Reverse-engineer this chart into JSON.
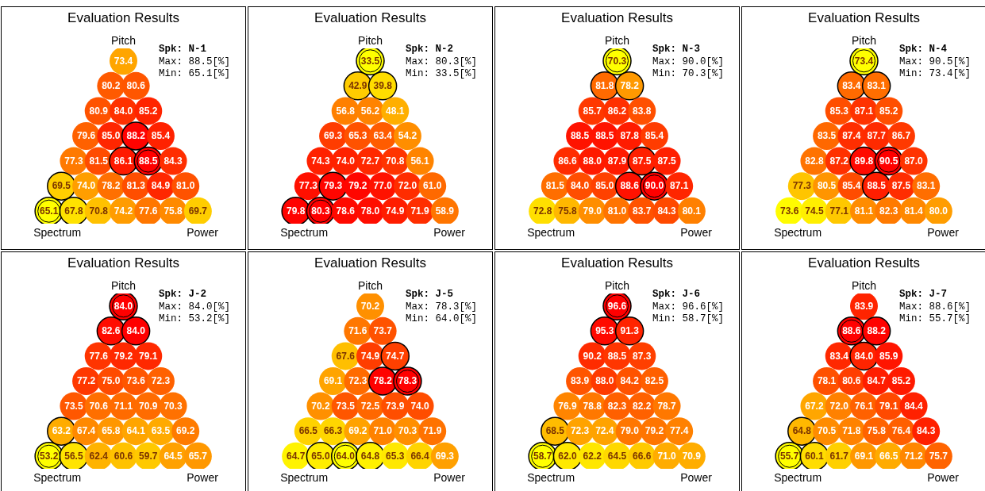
{
  "chart_data": [
    {
      "type": "other",
      "title": "Evaluation Results",
      "subtitle": "Spk: N-1",
      "annotations": [
        "Pitch",
        "Spectrum",
        "Power",
        "Max: 88.5[%]",
        "Min: 65.1[%]"
      ],
      "values": [
        73.4,
        80.2,
        80.6,
        80.9,
        84.0,
        85.2,
        79.6,
        85.0,
        88.2,
        85.4,
        77.3,
        81.5,
        86.1,
        88.5,
        84.3,
        69.5,
        74.0,
        78.2,
        81.3,
        84.9,
        81.0,
        65.1,
        67.8,
        70.8,
        74.2,
        77.6,
        75.8,
        69.7
      ],
      "value_labels": [
        "73.4",
        "80.2",
        "80.6",
        "80.9",
        "84.0",
        "85.2",
        "79.6",
        "85.0",
        "88.2",
        "85.4",
        "77.3",
        "81.5",
        "86.1",
        "88.5",
        "84.3",
        "69.5",
        "74.0",
        "78.2",
        "81.3",
        "84.9",
        "81.0",
        "65.1",
        "67.8",
        "70.8",
        "74.2",
        "77.6",
        "75.8",
        "69.7"
      ]
    },
    {
      "type": "other",
      "title": "Evaluation Results",
      "subtitle": "Spk: N-2",
      "annotations": [
        "Pitch",
        "Spectrum",
        "Power",
        "Max: 80.3[%]",
        "Min: 33.5[%]"
      ],
      "values": [
        33.5,
        42.9,
        39.8,
        56.8,
        56.2,
        48.1,
        69.3,
        65.3,
        63.4,
        54.2,
        74.3,
        74.0,
        72.7,
        70.8,
        56.1,
        77.3,
        79.3,
        79.2,
        77.0,
        72.0,
        61.0,
        79.8,
        80.3,
        78.6,
        78.0,
        74.9,
        71.9,
        58.9
      ],
      "value_labels": [
        "33.5",
        "42.9",
        "39.8",
        "56.8",
        "56.2",
        "48.1",
        "69.3",
        "65.3",
        "63.4",
        "54.2",
        "74.3",
        "74.0",
        "72.7",
        "70.8",
        "56.1",
        "77.3",
        "79.3",
        "79.2",
        "77.0",
        "72.0",
        "61.0",
        "79.8",
        "80.3",
        "78.6",
        "78.0",
        "74.9",
        "71.9",
        "58.9"
      ]
    },
    {
      "type": "other",
      "title": "Evaluation Results",
      "subtitle": "Spk: N-3",
      "annotations": [
        "Pitch",
        "Spectrum",
        "Power",
        "Max: 90.0[%]",
        "Min: 70.3[%]"
      ],
      "values": [
        70.3,
        81.8,
        78.2,
        85.7,
        86.2,
        83.8,
        88.5,
        88.5,
        87.8,
        85.4,
        86.6,
        88.0,
        87.9,
        87.5,
        87.5,
        81.5,
        84.0,
        85.0,
        88.6,
        90.0,
        87.1,
        72.8,
        75.8,
        79.0,
        81.0,
        83.7,
        84.3,
        80.1
      ],
      "value_labels": [
        "70.3",
        "81.8",
        "78.2",
        "85.7",
        "86.2",
        "83.8",
        "88.5",
        "88.5",
        "87.8",
        "85.4",
        "86.6",
        "88.0",
        "87.9",
        "87.5",
        "87.5",
        "81.5",
        "84.0",
        "85.0",
        "88.6",
        "90.0",
        "87.1",
        "72.8",
        "75.8",
        "79.0",
        "81.0",
        "83.7",
        "84.3",
        "80.1"
      ]
    },
    {
      "type": "other",
      "title": "Evaluation Results",
      "subtitle": "Spk: N-4",
      "annotations": [
        "Pitch",
        "Spectrum",
        "Power",
        "Max: 90.5[%]",
        "Min: 73.4[%]"
      ],
      "values": [
        73.4,
        83.4,
        83.1,
        85.3,
        87.1,
        85.2,
        83.5,
        87.4,
        87.7,
        86.7,
        82.8,
        87.2,
        89.8,
        90.5,
        87.0,
        77.3,
        80.5,
        85.4,
        88.5,
        87.5,
        83.1,
        73.6,
        74.5,
        77.1,
        81.1,
        82.3,
        81.4,
        80.0
      ],
      "value_labels": [
        "73.4",
        "83.4",
        "83.1",
        "85.3",
        "87.1",
        "85.2",
        "83.5",
        "87.4",
        "87.7",
        "86.7",
        "82.8",
        "87.2",
        "89.8",
        "90.5",
        "87.0",
        "77.3",
        "80.5",
        "85.4",
        "88.5",
        "87.5",
        "83.1",
        "73.6",
        "74.5",
        "77.1",
        "81.1",
        "82.3",
        "81.4",
        "80.0"
      ]
    },
    {
      "type": "other",
      "title": "Evaluation Results",
      "subtitle": "Spk: J-2",
      "annotations": [
        "Pitch",
        "Spectrum",
        "Power",
        "Max: 84.0[%]",
        "Min: 53.2[%]"
      ],
      "values": [
        84.0,
        82.6,
        84.0,
        77.6,
        79.2,
        79.1,
        77.2,
        75.0,
        73.6,
        72.3,
        73.5,
        70.6,
        71.1,
        70.9,
        70.3,
        63.2,
        67.4,
        65.8,
        64.1,
        63.5,
        69.2,
        53.2,
        56.5,
        62.4,
        60.6,
        59.7,
        64.5,
        65.7
      ],
      "value_labels": [
        "84.0",
        "82.6",
        "84.0",
        "77.6",
        "79.2",
        "79.1",
        "77.2",
        "75.0",
        "73.6",
        "72.3",
        "73.5",
        "70.6",
        "71.1",
        "70.9",
        "70.3",
        "63.2",
        "67.4",
        "65.8",
        "64.1",
        "63.5",
        "69.2",
        "53.2",
        "56.5",
        "62.4",
        "60.6",
        "59.7",
        "64.5",
        "65.7"
      ]
    },
    {
      "type": "other",
      "title": "Evaluation Results",
      "subtitle": "Spk: J-5",
      "annotations": [
        "Pitch",
        "Spectrum",
        "Power",
        "Max: 78.3[%]",
        "Min: 64.0[%]"
      ],
      "values": [
        70.2,
        71.6,
        73.7,
        67.6,
        74.9,
        74.7,
        69.1,
        72.3,
        78.2,
        78.3,
        70.2,
        73.5,
        72.5,
        73.9,
        74.0,
        66.5,
        66.3,
        69.2,
        71.0,
        70.3,
        71.9,
        64.7,
        65.0,
        64.0,
        64.8,
        65.3,
        66.4,
        69.3
      ],
      "value_labels": [
        "70.2",
        "71.6",
        "73.7",
        "67.6",
        "74.9",
        "74.7",
        "69.1",
        "72.3",
        "78.2",
        "78.3",
        "70.2",
        "73.5",
        "72.5",
        "73.9",
        "74.0",
        "66.5",
        "66.3",
        "69.2",
        "71.0",
        "70.3",
        "71.9",
        "64.7",
        "65.0",
        "64.0",
        "64.8",
        "65.3",
        "66.4",
        "69.3"
      ]
    },
    {
      "type": "other",
      "title": "Evaluation Results",
      "subtitle": "Spk: J-6",
      "annotations": [
        "Pitch",
        "Spectrum",
        "Power",
        "Max: 96.6[%]",
        "Min: 58.7[%]"
      ],
      "values": [
        96.6,
        95.3,
        91.3,
        90.2,
        88.5,
        87.3,
        83.9,
        88.0,
        84.2,
        82.5,
        76.9,
        78.8,
        82.3,
        82.2,
        78.7,
        68.5,
        72.3,
        72.4,
        79.0,
        79.2,
        77.4,
        58.7,
        62.0,
        62.2,
        64.5,
        66.6,
        71.0,
        70.9
      ],
      "value_labels": [
        "96.6",
        "95.3",
        "91.3",
        "90.2",
        "88.5",
        "87.3",
        "83.9",
        "88.0",
        "84.2",
        "82.5",
        "76.9",
        "78.8",
        "82.3",
        "82.2",
        "78.7",
        "68.5",
        "72.3",
        "72.4",
        "79.0",
        "79.2",
        "77.4",
        "58.7",
        "62.0",
        "62.2",
        "64.5",
        "66.6",
        "71.0",
        "70.9"
      ]
    },
    {
      "type": "other",
      "title": "Evaluation Results",
      "subtitle": "Spk: J-7",
      "annotations": [
        "Pitch",
        "Spectrum",
        "Power",
        "Max: 88.6[%]",
        "Min: 55.7[%]"
      ],
      "values": [
        83.9,
        88.6,
        88.2,
        83.4,
        84.0,
        85.9,
        78.1,
        80.6,
        84.7,
        85.2,
        67.2,
        72.0,
        76.1,
        79.1,
        84.4,
        64.8,
        70.5,
        71.8,
        75.8,
        76.4,
        84.3,
        55.7,
        60.1,
        61.7,
        69.1,
        66.5,
        71.2,
        75.7
      ],
      "value_labels": [
        "83.9",
        "88.6",
        "88.2",
        "83.4",
        "84.0",
        "85.9",
        "78.1",
        "80.6",
        "84.7",
        "85.2",
        "67.2",
        "72.0",
        "76.1",
        "79.1",
        "84.4",
        "64.8",
        "70.5",
        "71.8",
        "75.8",
        "76.4",
        "84.3",
        "55.7",
        "60.1",
        "61.7",
        "69.1",
        "66.5",
        "71.2",
        "75.7"
      ]
    }
  ]
}
